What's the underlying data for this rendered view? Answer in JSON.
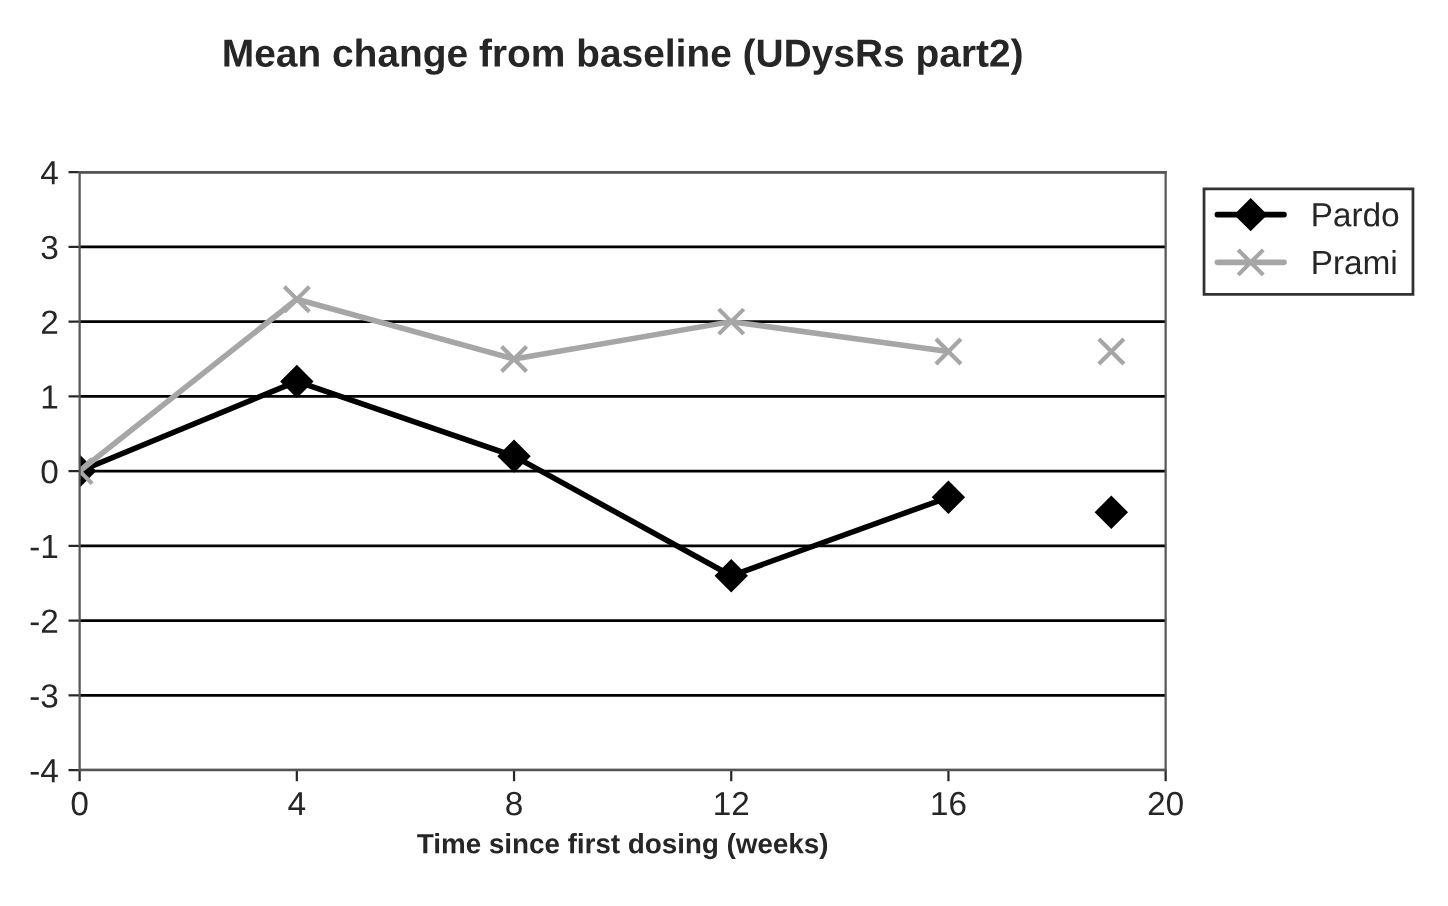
{
  "chart_data": {
    "type": "line",
    "title": "Mean change from baseline (UDysRs part2)",
    "xlabel": "Time since first dosing (weeks)",
    "x": [
      0,
      4,
      8,
      12,
      16,
      18,
      19
    ],
    "series": [
      {
        "name": "Pardo",
        "color": "#000000",
        "marker": "diamond",
        "values": [
          0,
          1.2,
          0.2,
          -1.4,
          -0.35,
          null,
          -0.55
        ]
      },
      {
        "name": "Prami",
        "color": "#a6a6a6",
        "marker": "cross",
        "values": [
          0,
          2.3,
          1.5,
          2.0,
          1.6,
          null,
          1.6
        ]
      }
    ],
    "xlim": [
      0,
      20
    ],
    "xticks": [
      0,
      4,
      8,
      12,
      16,
      20
    ],
    "ylim": [
      -4,
      4
    ],
    "yticks": [
      -4,
      -3,
      -2,
      -1,
      0,
      1,
      2,
      3,
      4
    ],
    "grid": "y",
    "legend": "top right",
    "line_style": "solid"
  }
}
